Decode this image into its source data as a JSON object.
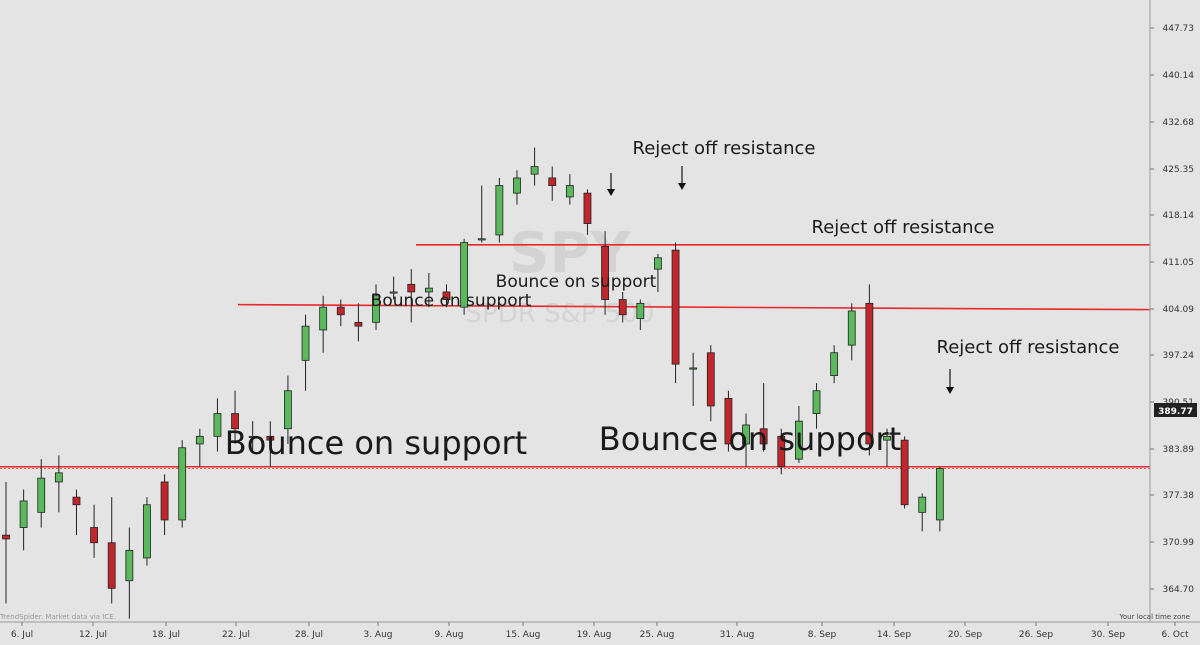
{
  "watermark": {
    "symbol": "SPY",
    "name": "SPDR S&P 500"
  },
  "credit": "TrendSpider. Market data via ICE.",
  "timezone_label": "Your local time zone",
  "last_price_label": "389.77",
  "colors": {
    "up": "#5cb85c",
    "down": "#c0272d",
    "level": "#e8282b",
    "wick": "#222222",
    "background": "#e4e4e4"
  },
  "chart_data": {
    "type": "candlestick",
    "y_ticks": [
      "447.73",
      "440.14",
      "432.68",
      "425.35",
      "418.14",
      "411.05",
      "404.09",
      "397.24",
      "390.51",
      "383.89",
      "377.38",
      "370.99",
      "364.70"
    ],
    "x_ticks": [
      "6. Jul",
      "12. Jul",
      "18. Jul",
      "22. Jul",
      "28. Jul",
      "3. Aug",
      "9. Aug",
      "15. Aug",
      "19. Aug",
      "25. Aug",
      "31. Aug",
      "8. Sep",
      "14. Sep",
      "20. Sep",
      "26. Sep",
      "30. Sep",
      "6. Oct"
    ],
    "last_price": 389.77,
    "levels": [
      {
        "name": "support",
        "value": 390.0
      },
      {
        "name": "middle-level",
        "value": 411.2
      },
      {
        "name": "resistance",
        "value": 419.2
      }
    ],
    "candles": [
      {
        "i": 0,
        "o": 381.0,
        "h": 388.0,
        "l": 372.0,
        "c": 380.5
      },
      {
        "i": 1,
        "o": 382.0,
        "h": 387.0,
        "l": 379.0,
        "c": 385.5
      },
      {
        "i": 2,
        "o": 384.0,
        "h": 391.0,
        "l": 382.0,
        "c": 388.5
      },
      {
        "i": 3,
        "o": 388.0,
        "h": 391.5,
        "l": 384.0,
        "c": 389.2
      },
      {
        "i": 4,
        "o": 386.0,
        "h": 387.0,
        "l": 381.0,
        "c": 385.0
      },
      {
        "i": 5,
        "o": 382.0,
        "h": 385.0,
        "l": 378.0,
        "c": 380.0
      },
      {
        "i": 6,
        "o": 380.0,
        "h": 386.0,
        "l": 372.0,
        "c": 374.0
      },
      {
        "i": 7,
        "o": 375.0,
        "h": 382.0,
        "l": 370.0,
        "c": 379.0
      },
      {
        "i": 8,
        "o": 378.0,
        "h": 386.0,
        "l": 377.0,
        "c": 385.0
      },
      {
        "i": 9,
        "o": 388.0,
        "h": 389.0,
        "l": 381.0,
        "c": 383.0
      },
      {
        "i": 10,
        "o": 383.0,
        "h": 393.5,
        "l": 382.0,
        "c": 392.5
      },
      {
        "i": 11,
        "o": 393.0,
        "h": 395.0,
        "l": 390.0,
        "c": 394.0
      },
      {
        "i": 12,
        "o": 394.0,
        "h": 399.0,
        "l": 392.0,
        "c": 397.0
      },
      {
        "i": 13,
        "o": 397.0,
        "h": 400.0,
        "l": 393.0,
        "c": 395.0
      },
      {
        "i": 14,
        "o": 394.0,
        "h": 396.0,
        "l": 392.0,
        "c": 394.0
      },
      {
        "i": 15,
        "o": 394.0,
        "h": 396.0,
        "l": 390.0,
        "c": 393.5
      },
      {
        "i": 16,
        "o": 395.0,
        "h": 402.0,
        "l": 393.0,
        "c": 400.0
      },
      {
        "i": 17,
        "o": 404.0,
        "h": 410.0,
        "l": 400.0,
        "c": 408.5
      },
      {
        "i": 18,
        "o": 408.0,
        "h": 412.5,
        "l": 405.0,
        "c": 411.0
      },
      {
        "i": 19,
        "o": 411.0,
        "h": 412.0,
        "l": 408.5,
        "c": 410.0
      },
      {
        "i": 20,
        "o": 409.0,
        "h": 411.5,
        "l": 406.5,
        "c": 408.5
      },
      {
        "i": 21,
        "o": 409.0,
        "h": 414.0,
        "l": 408.0,
        "c": 412.5
      },
      {
        "i": 22,
        "o": 413.0,
        "h": 415.0,
        "l": 412.0,
        "c": 413.0
      },
      {
        "i": 23,
        "o": 414.0,
        "h": 416.0,
        "l": 409.0,
        "c": 413.0
      },
      {
        "i": 24,
        "o": 413.0,
        "h": 415.5,
        "l": 411.0,
        "c": 413.5
      },
      {
        "i": 25,
        "o": 413.0,
        "h": 414.0,
        "l": 411.0,
        "c": 412.0
      },
      {
        "i": 26,
        "o": 411.0,
        "h": 420.0,
        "l": 410.0,
        "c": 419.5
      },
      {
        "i": 27,
        "o": 420.0,
        "h": 427.0,
        "l": 419.5,
        "c": 420.0
      },
      {
        "i": 28,
        "o": 420.5,
        "h": 428.0,
        "l": 419.5,
        "c": 427.0
      },
      {
        "i": 29,
        "o": 426.0,
        "h": 429.0,
        "l": 424.5,
        "c": 428.0
      },
      {
        "i": 30,
        "o": 428.5,
        "h": 432.0,
        "l": 427.0,
        "c": 429.5
      },
      {
        "i": 31,
        "o": 428.0,
        "h": 429.5,
        "l": 425.0,
        "c": 427.0
      },
      {
        "i": 32,
        "o": 425.5,
        "h": 428.5,
        "l": 424.5,
        "c": 427.0
      },
      {
        "i": 33,
        "o": 426.0,
        "h": 426.5,
        "l": 420.5,
        "c": 422.0
      },
      {
        "i": 34,
        "o": 419.0,
        "h": 421.0,
        "l": 410.0,
        "c": 412.0
      },
      {
        "i": 35,
        "o": 412.0,
        "h": 413.0,
        "l": 409.0,
        "c": 410.0
      },
      {
        "i": 36,
        "o": 409.5,
        "h": 412.0,
        "l": 408.0,
        "c": 411.5
      },
      {
        "i": 37,
        "o": 416.0,
        "h": 418.0,
        "l": 413.0,
        "c": 417.5
      },
      {
        "i": 38,
        "o": 418.5,
        "h": 419.5,
        "l": 401.0,
        "c": 403.5
      },
      {
        "i": 39,
        "o": 403.0,
        "h": 405.0,
        "l": 398.0,
        "c": 403.0
      },
      {
        "i": 40,
        "o": 405.0,
        "h": 406.0,
        "l": 396.0,
        "c": 398.0
      },
      {
        "i": 41,
        "o": 399.0,
        "h": 400.0,
        "l": 392.0,
        "c": 393.0
      },
      {
        "i": 42,
        "o": 393.0,
        "h": 397.0,
        "l": 390.0,
        "c": 395.5
      },
      {
        "i": 43,
        "o": 395.0,
        "h": 401.0,
        "l": 392.0,
        "c": 393.0
      },
      {
        "i": 44,
        "o": 394.0,
        "h": 395.0,
        "l": 389.0,
        "c": 390.0
      },
      {
        "i": 45,
        "o": 391.0,
        "h": 398.0,
        "l": 390.5,
        "c": 396.0
      },
      {
        "i": 46,
        "o": 397.0,
        "h": 401.0,
        "l": 395.0,
        "c": 400.0
      },
      {
        "i": 47,
        "o": 402.0,
        "h": 406.0,
        "l": 401.0,
        "c": 405.0
      },
      {
        "i": 48,
        "o": 406.0,
        "h": 411.5,
        "l": 404.0,
        "c": 410.5
      },
      {
        "i": 49,
        "o": 411.5,
        "h": 414.0,
        "l": 391.5,
        "c": 393.0
      },
      {
        "i": 50,
        "o": 393.5,
        "h": 395.0,
        "l": 390.0,
        "c": 394.0
      },
      {
        "i": 51,
        "o": 393.5,
        "h": 394.0,
        "l": 384.5,
        "c": 385.0
      },
      {
        "i": 52,
        "o": 384.0,
        "h": 386.5,
        "l": 381.5,
        "c": 386.0
      },
      {
        "i": 53,
        "o": 383.0,
        "h": 390.0,
        "l": 381.5,
        "c": 389.77
      }
    ],
    "annotations": [
      {
        "text": "Bounce on support",
        "size": "large"
      },
      {
        "text": "Bounce on support",
        "size": "large"
      },
      {
        "text": "Bounce on support",
        "size": "small"
      },
      {
        "text": "Bounce on support",
        "size": "small"
      },
      {
        "text": "Reject off resistance",
        "size": "small"
      },
      {
        "text": "Reject off resistance",
        "size": "small"
      },
      {
        "text": "Reject off resistance",
        "size": "small"
      }
    ]
  }
}
